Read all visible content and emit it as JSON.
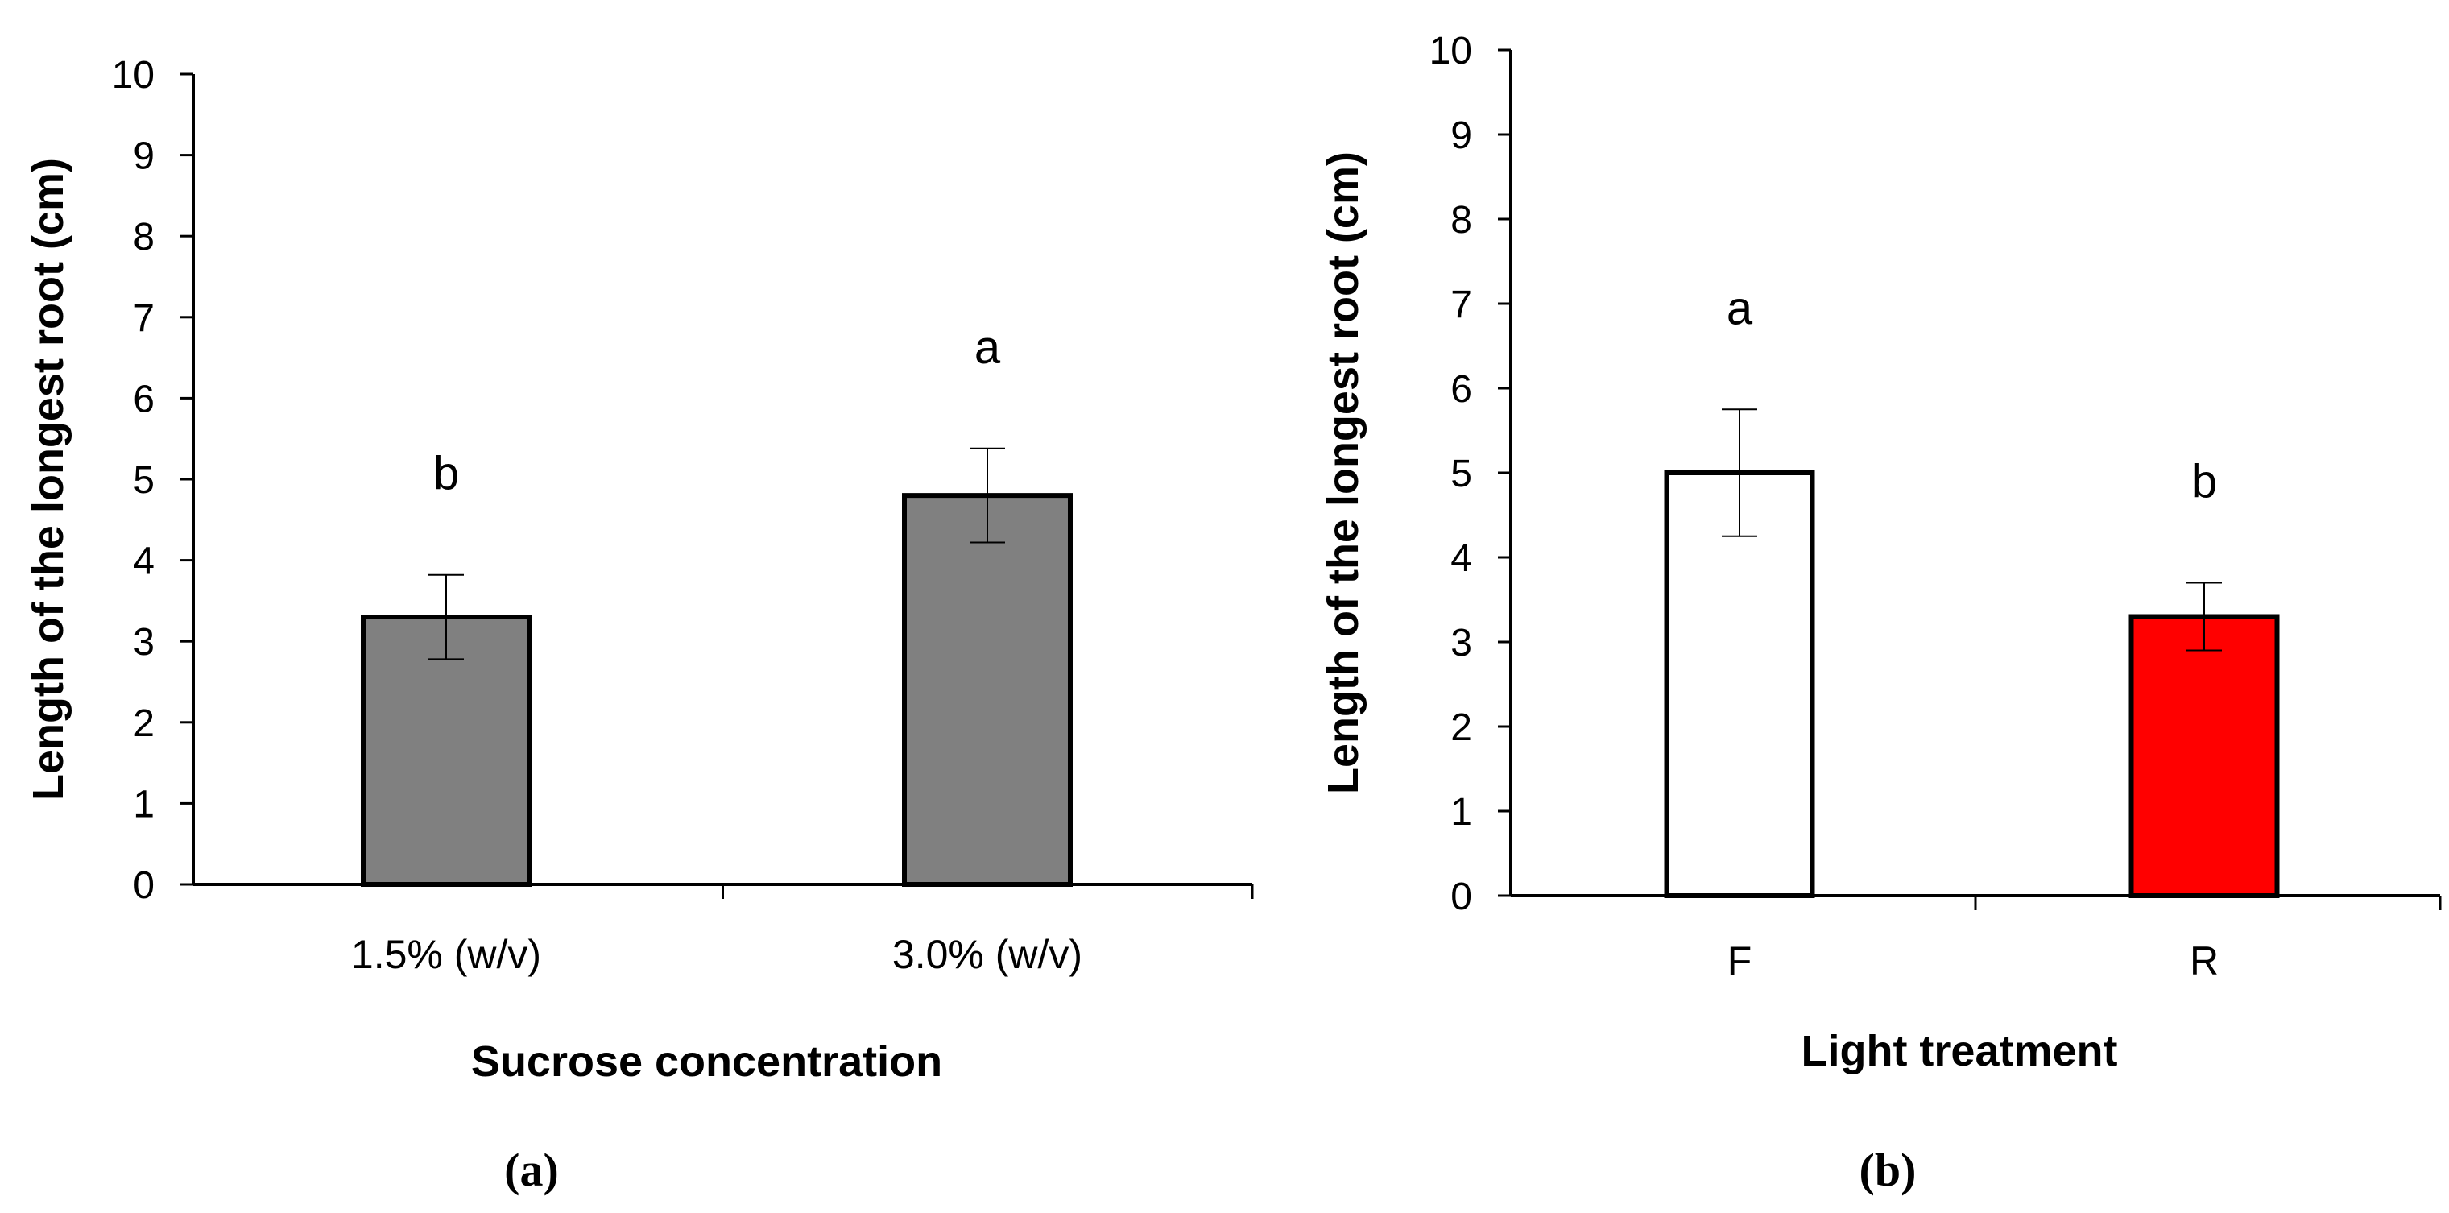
{
  "chart_data": [
    {
      "type": "bar",
      "panel_label": "(a)",
      "xlabel": "Sucrose concentration",
      "ylabel": "Length of the longest root (cm)",
      "ylim": [
        0,
        10
      ],
      "yticks": [
        0,
        1,
        2,
        3,
        4,
        5,
        6,
        7,
        8,
        9,
        10
      ],
      "categories": [
        "1.5% (w/v)",
        "3.0% (w/v)"
      ],
      "values": [
        3.3,
        4.8
      ],
      "errors": [
        0.52,
        0.58
      ],
      "significance": [
        "b",
        "a"
      ],
      "bar_colors": [
        "#808080",
        "#808080"
      ],
      "grid": false
    },
    {
      "type": "bar",
      "panel_label": "(b)",
      "xlabel": "Light treatment",
      "ylabel": "Length of the longest root (cm)",
      "ylim": [
        0,
        10
      ],
      "yticks": [
        0,
        1,
        2,
        3,
        4,
        5,
        6,
        7,
        8,
        9,
        10
      ],
      "categories": [
        "F",
        "R"
      ],
      "values": [
        5.0,
        3.3
      ],
      "errors": [
        0.75,
        0.4
      ],
      "significance": [
        "a",
        "b"
      ],
      "bar_colors": [
        "#ffffff",
        "#ff0000"
      ],
      "grid": false
    }
  ]
}
